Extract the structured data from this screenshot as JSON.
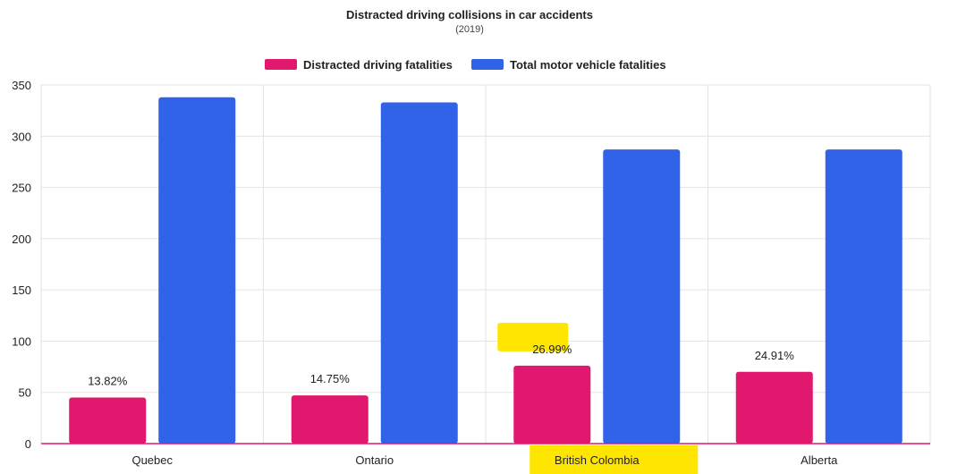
{
  "chart_data": {
    "type": "bar",
    "title": "Distracted driving collisions in car accidents",
    "subtitle": "(2019)",
    "categories": [
      "Quebec",
      "Ontario",
      "British Colombia",
      "Alberta"
    ],
    "series": [
      {
        "name": "Distracted driving fatalities",
        "color": "#e0196e",
        "values": [
          45,
          47,
          76,
          70
        ]
      },
      {
        "name": "Total motor vehicle fatalities",
        "color": "#3163e8",
        "values": [
          338,
          333,
          287,
          287
        ]
      }
    ],
    "data_labels": [
      "13.82%",
      "14.75%",
      "26.99%",
      "24.91%"
    ],
    "ylim": [
      0,
      350
    ],
    "yticks": [
      0,
      50,
      100,
      150,
      200,
      250,
      300,
      350
    ],
    "grid": true,
    "legend_position": "top",
    "highlights": {
      "color": "#ffe600",
      "targets": [
        "data_label:British Colombia",
        "category:British Colombia"
      ]
    }
  }
}
